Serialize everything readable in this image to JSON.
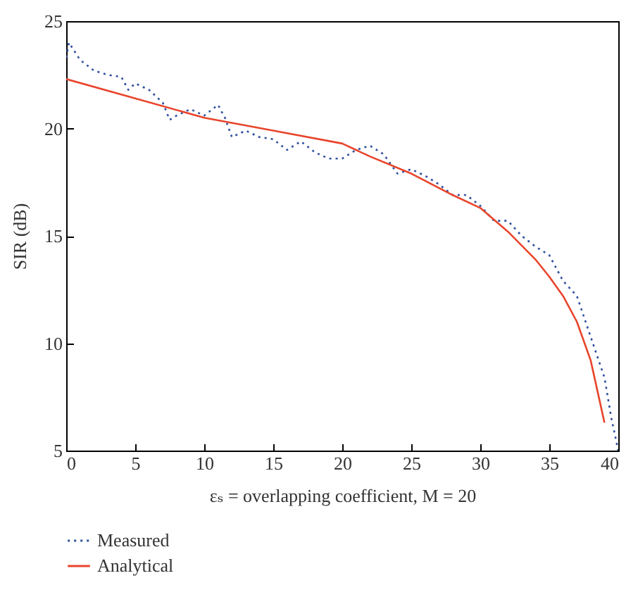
{
  "chart_data": {
    "type": "line",
    "xlabel": "εₛ = overlapping coefficient, M = 20",
    "ylabel": "SIR (dB)",
    "xlim": [
      0,
      40
    ],
    "xticks": [
      0,
      5,
      10,
      15,
      20,
      25,
      30,
      35,
      40
    ],
    "ylim": [
      5,
      25
    ],
    "yticks": [
      5,
      10,
      15,
      20,
      25
    ],
    "grid": false,
    "legend": "bottom",
    "marker": "none",
    "series": [
      {
        "name": "Measured",
        "color": "#2f4f9f",
        "line_style": "dotted",
        "x": [
          0,
          0.2,
          1,
          2,
          3,
          4,
          4.5,
          5,
          6,
          7,
          7.5,
          8,
          9,
          10,
          11,
          11.5,
          12,
          13,
          14,
          15,
          16,
          17,
          18,
          19,
          20,
          21,
          22,
          23,
          24,
          25,
          26,
          27,
          28,
          29,
          30,
          31,
          32,
          33,
          34,
          35,
          36,
          37,
          38,
          39,
          39.5,
          40
        ],
        "values": [
          23.3,
          24,
          23.2,
          22.7,
          22.5,
          22.4,
          21.8,
          22.1,
          21.8,
          21.2,
          20.4,
          20.6,
          20.9,
          20.6,
          21.1,
          20.5,
          19.6,
          19.9,
          19.6,
          19.5,
          19.0,
          19.4,
          18.9,
          18.6,
          18.6,
          19.0,
          19.2,
          18.8,
          17.9,
          18.1,
          17.8,
          17.4,
          16.9,
          16.9,
          16.4,
          15.7,
          15.7,
          15.0,
          14.5,
          14.1,
          12.9,
          12.2,
          10.3,
          8.4,
          6.5,
          5
        ]
      },
      {
        "name": "Analytical",
        "color": "#e8452c",
        "line_style": "solid",
        "x": [
          0,
          5,
          10,
          15,
          20,
          22,
          25,
          28,
          30,
          32,
          34,
          35,
          36,
          37,
          38,
          39
        ],
        "values": [
          22.3,
          21.4,
          20.5,
          19.9,
          19.3,
          18.7,
          17.9,
          16.9,
          16.3,
          15.2,
          13.9,
          13.1,
          12.2,
          11.0,
          9.2,
          6.3
        ]
      }
    ]
  }
}
